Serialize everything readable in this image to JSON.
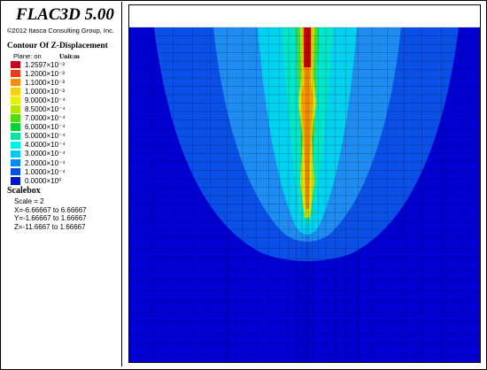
{
  "header": {
    "app_title": "FLAC3D 5.00",
    "copyright": "©2012 Itasca Consulting Group, Inc."
  },
  "contour": {
    "heading": "Contour Of Z-Displacement",
    "plane": "Plane: on",
    "unit": "Unit:m",
    "levels": [
      {
        "label": "1.2597×10⁻³",
        "color": "#c8001e"
      },
      {
        "label": "1.2000×10⁻³",
        "color": "#f03c14"
      },
      {
        "label": "1.1000×10⁻³",
        "color": "#ff8c00"
      },
      {
        "label": "1.0000×10⁻³",
        "color": "#ffd200"
      },
      {
        "label": "9.0000×10⁻⁴",
        "color": "#e6f000"
      },
      {
        "label": "8.5000×10⁻⁴",
        "color": "#b4e600"
      },
      {
        "label": "7.0000×10⁻⁴",
        "color": "#50dc00"
      },
      {
        "label": "6.0000×10⁻⁴",
        "color": "#00d23c"
      },
      {
        "label": "5.0000×10⁻⁴",
        "color": "#00e6a0"
      },
      {
        "label": "4.0000×10⁻⁴",
        "color": "#00f0e6"
      },
      {
        "label": "3.0000×10⁻⁴",
        "color": "#00c8f0"
      },
      {
        "label": "2.0000×10⁻⁴",
        "color": "#008cf0"
      },
      {
        "label": "1.0000×10⁻⁴",
        "color": "#0050e6"
      },
      {
        "label": "0.0000×10⁰",
        "color": "#0014c8"
      }
    ]
  },
  "scalebox": {
    "heading": "Scalebox",
    "scale": "Scale = 2",
    "x_range": "X=-6.66667 to 6.66667",
    "y_range": "Y=-1.66667 to 1.66667",
    "z_range": "Z=-11.6667 to 1.66667"
  },
  "plot": {
    "colors": {
      "background": "#0000d2",
      "zone_blue_mid": "#0a50e6",
      "zone_blue_light": "#1e8cf0",
      "zone_cyan": "#00d2f0",
      "zone_teal": "#00e6c8",
      "zone_green": "#3cdc3c",
      "zone_yellow": "#dce600",
      "zone_orange": "#ff9600",
      "zone_red": "#d20000"
    }
  }
}
